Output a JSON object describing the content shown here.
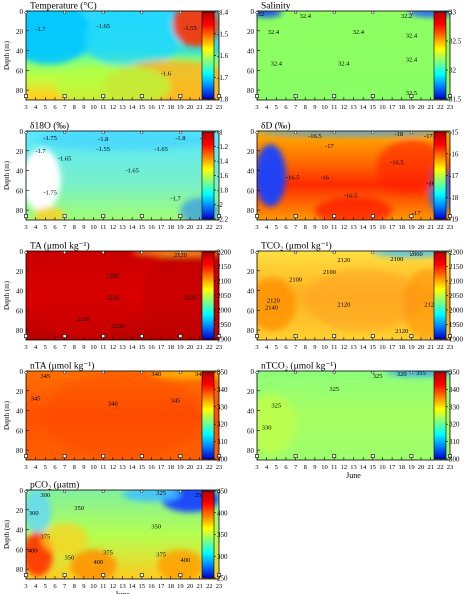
{
  "chart_data": [
    {
      "type": "heatmap",
      "title": "Temperature (°C)",
      "ylabel": "Depth (m)",
      "xlabel": "",
      "x_ticks": [
        3,
        4,
        5,
        6,
        7,
        8,
        9,
        10,
        11,
        12,
        13,
        14,
        15,
        16,
        17,
        18,
        19,
        20,
        21,
        22,
        23
      ],
      "y_ticks": [
        0,
        20,
        40,
        60,
        80
      ],
      "ylim": [
        0,
        90
      ],
      "colorbar": {
        "range": [
          -1.8,
          -1.4
        ],
        "ticks": [
          "-1.4",
          "-1.5",
          "-1.6",
          "-1.7",
          "-1.8"
        ]
      },
      "contour_labels": [
        {
          "text": "-1.7",
          "x": 4.5,
          "y": 17
        },
        {
          "text": "-1.65",
          "x": 11,
          "y": 14
        },
        {
          "text": "-1.5",
          "x": 22,
          "y": 6
        },
        {
          "text": "-1.55",
          "x": 20,
          "y": 16
        },
        {
          "text": "-1.6",
          "x": 17.5,
          "y": 62
        }
      ],
      "sample_days": [
        3,
        7,
        11,
        15,
        19,
        23
      ]
    },
    {
      "type": "heatmap",
      "title": "Salinity",
      "ylabel": "",
      "xlabel": "",
      "x_ticks": [
        3,
        4,
        5,
        6,
        7,
        8,
        9,
        10,
        11,
        12,
        13,
        14,
        15,
        16,
        17,
        18,
        19,
        20,
        21,
        22,
        23
      ],
      "y_ticks": [
        0,
        20,
        40,
        60,
        80
      ],
      "ylim": [
        0,
        90
      ],
      "colorbar": {
        "range": [
          31.5,
          33
        ],
        "ticks": [
          "33",
          "32.5",
          "32",
          "31.5"
        ]
      },
      "contour_labels": [
        {
          "text": "32",
          "x": 3.4,
          "y": 2
        },
        {
          "text": "32.4",
          "x": 8,
          "y": 4
        },
        {
          "text": "32.2",
          "x": 18.5,
          "y": 4
        },
        {
          "text": "32.4",
          "x": 4.7,
          "y": 20
        },
        {
          "text": "32.4",
          "x": 13.5,
          "y": 20
        },
        {
          "text": "32.4",
          "x": 19,
          "y": 24
        },
        {
          "text": "32.4",
          "x": 5,
          "y": 52
        },
        {
          "text": "32.4",
          "x": 12,
          "y": 52
        },
        {
          "text": "32.4",
          "x": 19,
          "y": 48
        },
        {
          "text": "32.5",
          "x": 19,
          "y": 82
        }
      ],
      "sample_days": [
        3,
        7,
        11,
        15,
        19,
        23
      ]
    },
    {
      "type": "heatmap",
      "title": "δ18O (‰)",
      "ylabel": "Depth (m)",
      "xlabel": "",
      "x_ticks": [
        3,
        4,
        5,
        6,
        7,
        8,
        9,
        10,
        11,
        12,
        13,
        14,
        15,
        16,
        17,
        18,
        19,
        20,
        21,
        22,
        23
      ],
      "y_ticks": [
        0,
        20,
        40,
        60,
        80
      ],
      "ylim": [
        0,
        90
      ],
      "colorbar": {
        "range": [
          -2.2,
          -1
        ],
        "ticks": [
          "-1",
          "-1.2",
          "-1.4",
          "-1.6",
          "-1.8",
          "-2",
          "-2.2"
        ]
      },
      "contour_labels": [
        {
          "text": "-1.75",
          "x": 5.5,
          "y": 6
        },
        {
          "text": "-1.8",
          "x": 11,
          "y": 7
        },
        {
          "text": "-1.8",
          "x": 19,
          "y": 6
        },
        {
          "text": "-1.75",
          "x": 21.7,
          "y": 6
        },
        {
          "text": "-1.7",
          "x": 4.5,
          "y": 19
        },
        {
          "text": "-1.55",
          "x": 11,
          "y": 17
        },
        {
          "text": "-1.65",
          "x": 17,
          "y": 17
        },
        {
          "text": "-1.65",
          "x": 7,
          "y": 27
        },
        {
          "text": "-1.65",
          "x": 14,
          "y": 39
        },
        {
          "text": "-1.75",
          "x": 5.5,
          "y": 61
        },
        {
          "text": "-1.7",
          "x": 18.5,
          "y": 67
        }
      ],
      "sample_days": [
        3,
        7,
        11,
        15,
        19,
        23
      ]
    },
    {
      "type": "heatmap",
      "title": "δD (‰)",
      "ylabel": "",
      "xlabel": "",
      "x_ticks": [
        3,
        4,
        5,
        6,
        7,
        8,
        9,
        10,
        11,
        12,
        13,
        14,
        15,
        16,
        17,
        18,
        19,
        20,
        21,
        22,
        23
      ],
      "y_ticks": [
        0,
        20,
        40,
        60,
        80
      ],
      "ylim": [
        0,
        90
      ],
      "colorbar": {
        "range": [
          -19.5,
          -15
        ],
        "ticks": [
          "-15",
          "-16",
          "-17",
          "-18",
          "-19"
        ]
      },
      "contour_labels": [
        {
          "text": "-16.5",
          "x": 9,
          "y": 4
        },
        {
          "text": "-18",
          "x": 17.7,
          "y": 2
        },
        {
          "text": "-17.5",
          "x": 21,
          "y": 4
        },
        {
          "text": "-17",
          "x": 10.5,
          "y": 14
        },
        {
          "text": "-16.5",
          "x": 17.5,
          "y": 31
        },
        {
          "text": "-16.5",
          "x": 6.7,
          "y": 46
        },
        {
          "text": "-16",
          "x": 10,
          "y": 46
        },
        {
          "text": "-16",
          "x": 21,
          "y": 52
        },
        {
          "text": "-16.5",
          "x": 12.7,
          "y": 64
        },
        {
          "text": "-17",
          "x": 19.5,
          "y": 82
        }
      ],
      "sample_days": [
        3,
        7,
        11,
        15,
        19,
        23
      ]
    },
    {
      "type": "heatmap",
      "title": "TA (μmol kg⁻¹)",
      "ylabel": "Depth (m)",
      "xlabel": "",
      "x_ticks": [
        3,
        4,
        5,
        6,
        7,
        8,
        9,
        10,
        11,
        12,
        13,
        14,
        15,
        16,
        17,
        18,
        19,
        20,
        21,
        22,
        23
      ],
      "y_ticks": [
        0,
        20,
        40,
        60,
        80
      ],
      "ylim": [
        0,
        90
      ],
      "colorbar": {
        "range": [
          1900,
          2250
        ],
        "ticks": [
          "2200",
          "2150",
          "2100",
          "2050",
          "2000",
          "1950",
          "1900"
        ]
      },
      "contour_labels": [
        {
          "text": "2120",
          "x": 19,
          "y": 3
        },
        {
          "text": "2200",
          "x": 12,
          "y": 24
        },
        {
          "text": "2220",
          "x": 12,
          "y": 46
        },
        {
          "text": "2225",
          "x": 20,
          "y": 46
        },
        {
          "text": "2225",
          "x": 22,
          "y": 68
        },
        {
          "text": "2225",
          "x": 9,
          "y": 68
        },
        {
          "text": "2230",
          "x": 12.5,
          "y": 75
        }
      ],
      "sample_days": [
        3,
        7,
        11,
        15,
        19,
        23
      ]
    },
    {
      "type": "heatmap",
      "title": "TCO₂ (μmol kg⁻¹)",
      "ylabel": "",
      "xlabel": "",
      "x_ticks": [
        3,
        4,
        5,
        6,
        7,
        8,
        9,
        10,
        11,
        12,
        13,
        14,
        15,
        16,
        17,
        18,
        19,
        20,
        21,
        22,
        23
      ],
      "y_ticks": [
        0,
        20,
        40,
        60,
        80
      ],
      "ylim": [
        0,
        90
      ],
      "colorbar": {
        "range": [
          1900,
          2250
        ],
        "ticks": [
          "2200",
          "2150",
          "2100",
          "2050",
          "2000",
          "1950",
          "1900"
        ]
      },
      "contour_labels": [
        {
          "text": "2060",
          "x": 19.5,
          "y": 2
        },
        {
          "text": "2120",
          "x": 12,
          "y": 8
        },
        {
          "text": "2100",
          "x": 17.5,
          "y": 7
        },
        {
          "text": "2100",
          "x": 10.5,
          "y": 20
        },
        {
          "text": "2100",
          "x": 7,
          "y": 28
        },
        {
          "text": "2120",
          "x": 4.7,
          "y": 49
        },
        {
          "text": "2140",
          "x": 4.5,
          "y": 56
        },
        {
          "text": "2120",
          "x": 12,
          "y": 53
        },
        {
          "text": "2120",
          "x": 21,
          "y": 53
        },
        {
          "text": "2120",
          "x": 18,
          "y": 80
        }
      ],
      "sample_days": [
        3,
        7,
        11,
        15,
        19,
        23
      ]
    },
    {
      "type": "heatmap",
      "title": "nTA (μmol kg⁻¹)",
      "ylabel": "Depth (m)",
      "xlabel": "",
      "x_ticks": [
        3,
        4,
        5,
        6,
        7,
        8,
        9,
        10,
        11,
        12,
        13,
        14,
        15,
        16,
        17,
        18,
        19,
        20,
        21,
        22,
        23
      ],
      "y_ticks": [
        0,
        20,
        40,
        60,
        80
      ],
      "ylim": [
        0,
        90
      ],
      "colorbar": {
        "range": [
          300,
          350
        ],
        "ticks": [
          "350",
          "340",
          "330",
          "320",
          "310",
          "300"
        ]
      },
      "contour_labels": [
        {
          "text": "345",
          "x": 5,
          "y": 4
        },
        {
          "text": "340",
          "x": 16.5,
          "y": 2
        },
        {
          "text": "340",
          "x": 21,
          "y": 2
        },
        {
          "text": "345",
          "x": 4,
          "y": 27
        },
        {
          "text": "340",
          "x": 12,
          "y": 32
        },
        {
          "text": "345",
          "x": 18.5,
          "y": 29
        }
      ],
      "sample_days": [
        3,
        7,
        11,
        15,
        19,
        23
      ]
    },
    {
      "type": "heatmap",
      "title": "nTCO₂ (μmol kg⁻¹)",
      "ylabel": "",
      "xlabel": "June",
      "x_ticks": [
        3,
        4,
        5,
        6,
        7,
        8,
        9,
        10,
        11,
        12,
        13,
        14,
        15,
        16,
        17,
        18,
        19,
        20,
        21,
        22,
        23
      ],
      "y_ticks": [
        0,
        20,
        40,
        60,
        80
      ],
      "ylim": [
        0,
        90
      ],
      "colorbar": {
        "range": [
          300,
          350
        ],
        "ticks": [
          "350",
          "340",
          "330",
          "320",
          "310",
          "300"
        ]
      },
      "contour_labels": [
        {
          "text": "325",
          "x": 15.5,
          "y": 4
        },
        {
          "text": "320",
          "x": 18,
          "y": 2
        },
        {
          "text": "315",
          "x": 20,
          "y": 1
        },
        {
          "text": "325",
          "x": 22,
          "y": 3
        },
        {
          "text": "325",
          "x": 11,
          "y": 17
        },
        {
          "text": "325",
          "x": 5,
          "y": 34
        },
        {
          "text": "330",
          "x": 4,
          "y": 56
        }
      ],
      "sample_days": [
        3,
        7,
        11,
        15,
        19,
        23
      ]
    },
    {
      "type": "heatmap",
      "title": "pCO₂ (μatm)",
      "ylabel": "Depth (m)",
      "xlabel": "June",
      "x_ticks": [
        3,
        4,
        5,
        6,
        7,
        8,
        9,
        10,
        11,
        12,
        13,
        14,
        15,
        16,
        17,
        18,
        19,
        20,
        21,
        22,
        23
      ],
      "y_ticks": [
        0,
        20,
        40,
        60,
        80
      ],
      "ylim": [
        0,
        90
      ],
      "colorbar": {
        "range": [
          250,
          450
        ],
        "ticks": [
          "450",
          "400",
          "350",
          "300",
          "250"
        ]
      },
      "contour_labels": [
        {
          "text": "325",
          "x": 17,
          "y": 2
        },
        {
          "text": "250",
          "x": 21,
          "y": 4
        },
        {
          "text": "300",
          "x": 5,
          "y": 4
        },
        {
          "text": "300",
          "x": 3.8,
          "y": 22
        },
        {
          "text": "350",
          "x": 8.5,
          "y": 17
        },
        {
          "text": "350",
          "x": 16.5,
          "y": 36
        },
        {
          "text": "375",
          "x": 5,
          "y": 46
        },
        {
          "text": "350",
          "x": 7.5,
          "y": 67
        },
        {
          "text": "400",
          "x": 3.7,
          "y": 60
        },
        {
          "text": "375",
          "x": 11.5,
          "y": 62
        },
        {
          "text": "375",
          "x": 17,
          "y": 64
        },
        {
          "text": "400",
          "x": 10.5,
          "y": 72
        },
        {
          "text": "400",
          "x": 19.5,
          "y": 70
        }
      ],
      "sample_days": [
        3,
        7,
        11,
        15,
        19,
        23
      ]
    }
  ]
}
